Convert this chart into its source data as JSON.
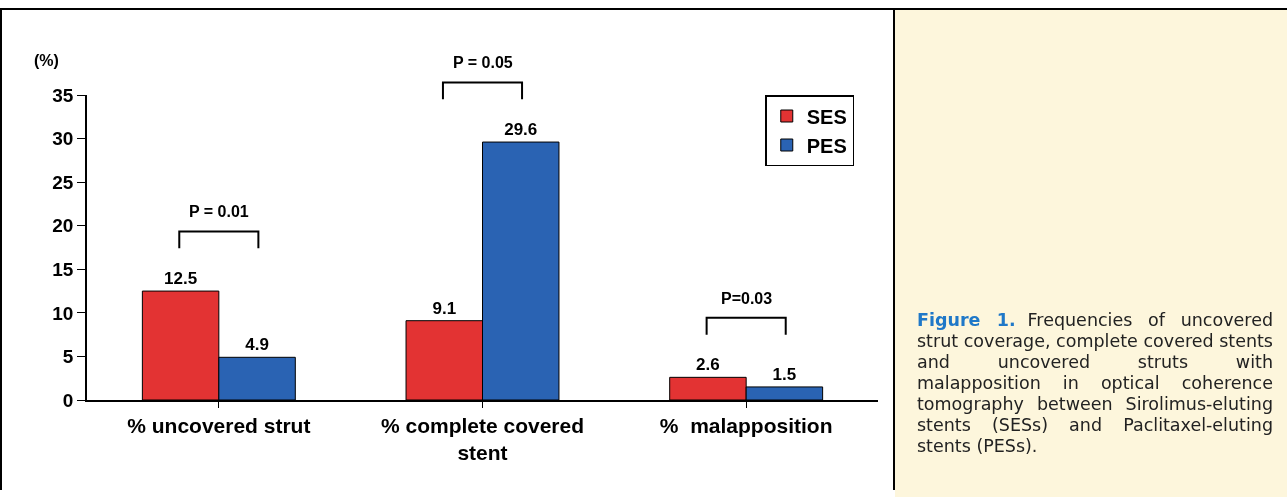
{
  "chart_data": {
    "type": "bar",
    "ylabel": "(%)",
    "categories": [
      "% uncovered strut",
      "% complete covered stent",
      "%  malapposition"
    ],
    "series": [
      {
        "name": "SES",
        "color": "#e33333",
        "values": [
          12.5,
          9.1,
          2.6
        ]
      },
      {
        "name": "PES",
        "color": "#2a63b3",
        "values": [
          4.9,
          29.6,
          1.5
        ]
      }
    ],
    "ylim": [
      0,
      35
    ],
    "yticks": [
      0,
      5,
      10,
      15,
      20,
      25,
      30,
      35
    ],
    "data_labels": true,
    "grid": false,
    "legend": "top right",
    "annotations": [
      "P = 0.01",
      "P = 0.05",
      "P=0.03",
      "Figure 1.",
      "Frequencies of uncovered strut coverage, complete covered stents and uncovered struts with malapposition in optical coherence tomography between Sirolimus-eluting stents (SESs) and Paclitaxel-eluting stents (PESs)."
    ]
  }
}
